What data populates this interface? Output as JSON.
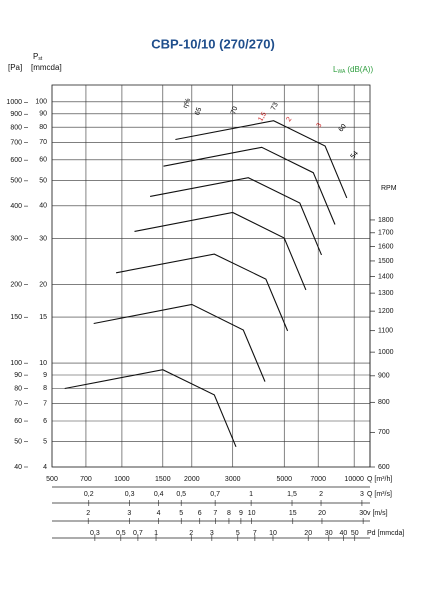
{
  "chart_data": {
    "type": "line",
    "title": "CBP-10/10 (270/270)",
    "title_color": "#1f4e8c",
    "pressure_symbol": "P",
    "pressure_sub": "st",
    "y_label": "[Pa]",
    "y2_label": "[mmcda]",
    "x_label": "Q [m³/h]",
    "rpm_label": "RPM",
    "lwa_symbol": "L",
    "lwa_sub": "WA",
    "lwa_unit": "(dB(A))",
    "lwa_color": "#2e9e3e",
    "xlim": [
      500,
      11700
    ],
    "xticks": [
      500,
      700,
      1000,
      1500,
      2000,
      3000,
      5000,
      7000,
      10000
    ],
    "log_scale": true,
    "grid": true,
    "ylim": [
      40,
      1165
    ],
    "yticks": [
      40,
      50,
      60,
      70,
      80,
      90,
      100,
      150,
      200,
      300,
      400,
      500,
      600,
      700,
      800,
      900,
      1000
    ],
    "y2lim": [
      4,
      116
    ],
    "y2ticks": [
      4,
      5,
      6,
      7,
      8,
      9,
      10,
      15,
      20,
      30,
      40,
      50,
      60,
      70,
      80,
      90,
      100
    ],
    "rpmlim": [
      600,
      3280
    ],
    "rpmticks": [
      600,
      700,
      800,
      900,
      1000,
      1100,
      1200,
      1300,
      1400,
      1500,
      1600,
      1700,
      1800
    ],
    "bottom_axes": [
      {
        "label": "Q [m³/s]",
        "lim": [
          0.1389,
          3.25
        ],
        "ticks": [
          {
            "value": 0.2,
            "label": "0,2"
          },
          {
            "value": 0.3,
            "label": "0,3"
          },
          {
            "value": 0.4,
            "label": "0,4"
          },
          {
            "value": 0.5,
            "label": "0,5"
          },
          {
            "value": 0.7,
            "label": "0,7"
          },
          1,
          {
            "value": 1.5,
            "label": "1,5"
          },
          2,
          3
        ]
      },
      {
        "label": "v [m/s]",
        "lim": [
          1.4,
          32.1
        ],
        "ticks": [
          2,
          3,
          4,
          5,
          6,
          7,
          8,
          9,
          10,
          15,
          20,
          30
        ]
      },
      {
        "label": "Pd [mmcda]",
        "lim": [
          0.129,
          67.5
        ],
        "ticks": [
          {
            "value": 0.3,
            "label": "0,3"
          },
          {
            "value": 0.5,
            "label": "0,5"
          },
          {
            "value": 0.7,
            "label": "0,7"
          },
          1,
          2,
          3,
          5,
          7,
          10,
          20,
          30,
          40,
          50
        ]
      }
    ],
    "annotations": [
      {
        "text": "η%",
        "color": "#000000"
      },
      {
        "text": "65",
        "color": "#000000"
      },
      {
        "text": "70",
        "color": "#000000"
      },
      {
        "text": "73",
        "color": "#000000"
      },
      {
        "text": "1,5",
        "color": "#cc2222"
      },
      {
        "text": "2",
        "color": "#cc2222"
      },
      {
        "text": "3",
        "color": "#cc2222"
      },
      {
        "text": "60",
        "color": "#000000"
      },
      {
        "text": "54",
        "color": "#000000"
      }
    ],
    "curve_color": "#111111",
    "series": [
      {
        "x": [
          567,
          1500,
          2500,
          3100
        ],
        "values": [
          80,
          94.4,
          75.6,
          47.8
        ]
      },
      {
        "x": [
          756,
          2000,
          3333,
          4133
        ],
        "values": [
          142,
          168,
          134,
          85
        ]
      },
      {
        "x": [
          944,
          2500,
          4167,
          5167
        ],
        "values": [
          222,
          262,
          210,
          133
        ]
      },
      {
        "x": [
          1133,
          3000,
          5000,
          6200
        ],
        "values": [
          320,
          378,
          302,
          191
        ]
      },
      {
        "x": [
          1322,
          3500,
          5833,
          7233
        ],
        "values": [
          436,
          514,
          411,
          260
        ]
      },
      {
        "x": [
          1511,
          4000,
          6667,
          8267
        ],
        "values": [
          569,
          672,
          537,
          340
        ]
      },
      {
        "x": [
          1700,
          4500,
          7500,
          9300
        ],
        "values": [
          720,
          850,
          680,
          430
        ]
      }
    ]
  }
}
